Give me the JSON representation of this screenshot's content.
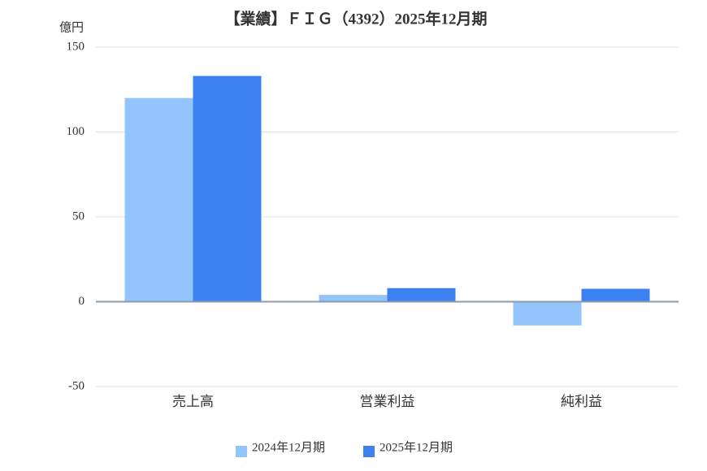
{
  "chart_data": {
    "type": "bar",
    "title": "【業績】ＦＩＧ（4392）2025年12月期",
    "y_label": "億円",
    "categories": [
      "売上高",
      "営業利益",
      "純利益"
    ],
    "series": [
      {
        "name": "2024年12月期",
        "color": "#93c4fb",
        "values": [
          120,
          4,
          -14
        ]
      },
      {
        "name": "2025年12月期",
        "color": "#3b82f0",
        "values": [
          133,
          8,
          7.6
        ]
      }
    ],
    "ylim": [
      -50,
      150
    ],
    "yticks": [
      -50,
      0,
      50,
      100,
      150
    ],
    "grid": true
  }
}
